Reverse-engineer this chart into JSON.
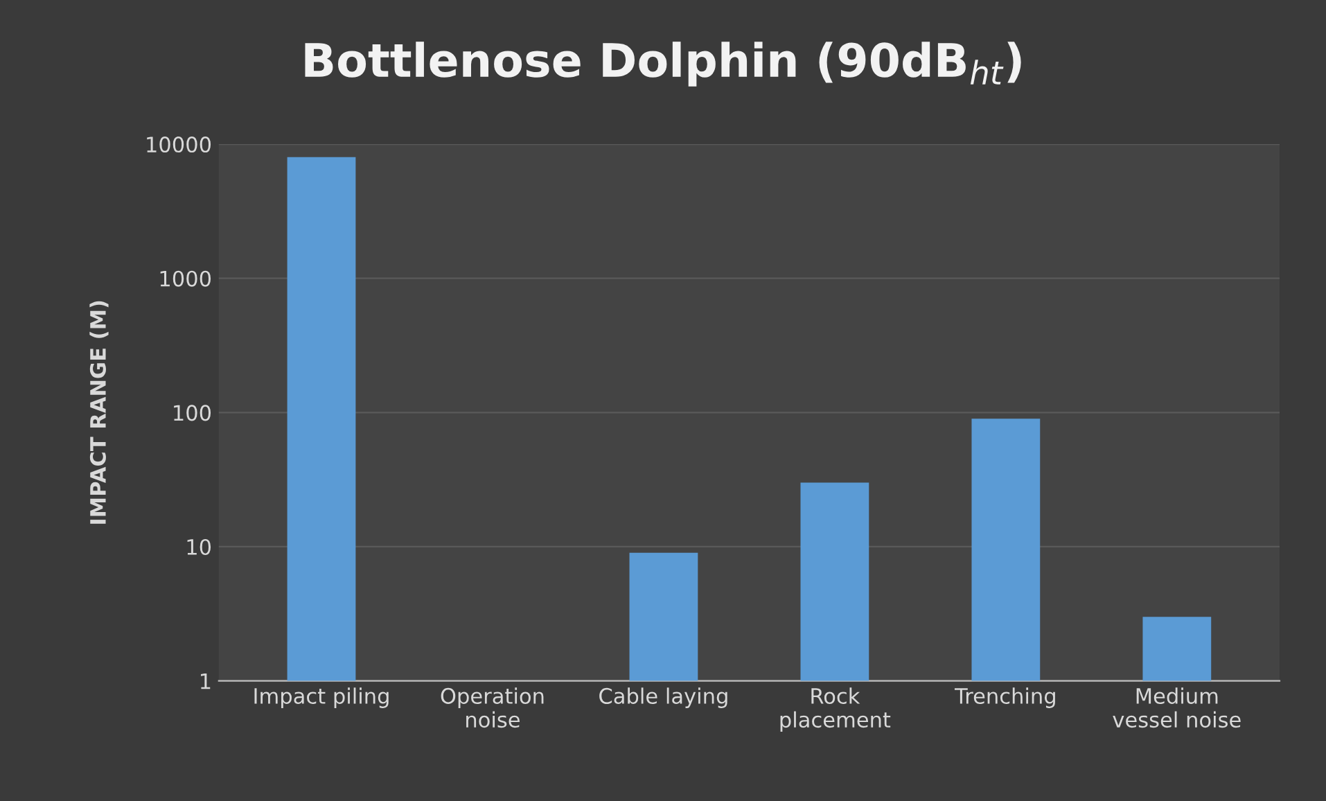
{
  "chart_data": {
    "type": "bar",
    "title": "Bottlenose Dolphin (90dB$_{ht}$)",
    "ylabel": "IMPACT RANGE (M)",
    "categories": [
      "Impact piling",
      "Operation\nnoise",
      "Cable laying",
      "Rock\nplacement",
      "Trenching",
      "Medium\nvessel noise"
    ],
    "values": [
      8000,
      null,
      9,
      30,
      90,
      3
    ],
    "color": "#5b9bd5",
    "log": "y",
    "ylim": [
      1,
      10000
    ],
    "yticks": [
      1,
      10,
      100,
      1000,
      10000
    ],
    "grid": "y"
  }
}
